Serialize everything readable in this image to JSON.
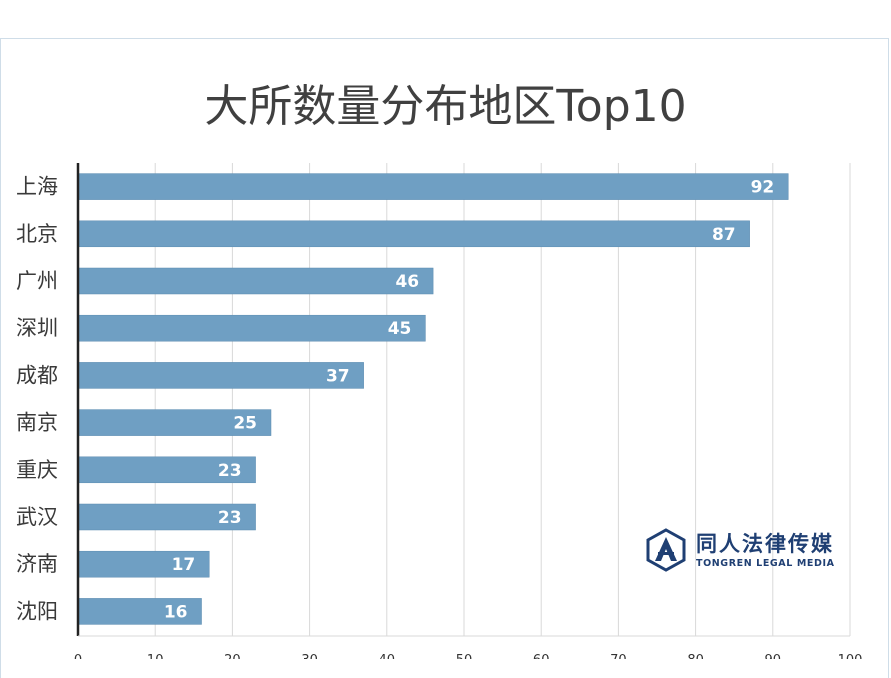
{
  "chart_data": {
    "type": "bar",
    "orientation": "horizontal",
    "title": "大所数量分布地区Top10",
    "categories": [
      "上海",
      "北京",
      "广州",
      "深圳",
      "成都",
      "南京",
      "重庆",
      "武汉",
      "济南",
      "沈阳"
    ],
    "values": [
      92,
      87,
      46,
      45,
      37,
      25,
      23,
      23,
      17,
      16
    ],
    "xlim": [
      0,
      100
    ],
    "xticks": [
      0,
      10,
      20,
      30,
      40,
      50,
      60,
      70,
      80,
      90,
      100
    ],
    "grid": true,
    "bar_color": "#6f9fc3",
    "value_labels": true
  },
  "watermark": {
    "name_cn": "同人法律传媒",
    "name_en": "TONGREN LEGAL MEDIA",
    "color": "#1f3f73"
  }
}
